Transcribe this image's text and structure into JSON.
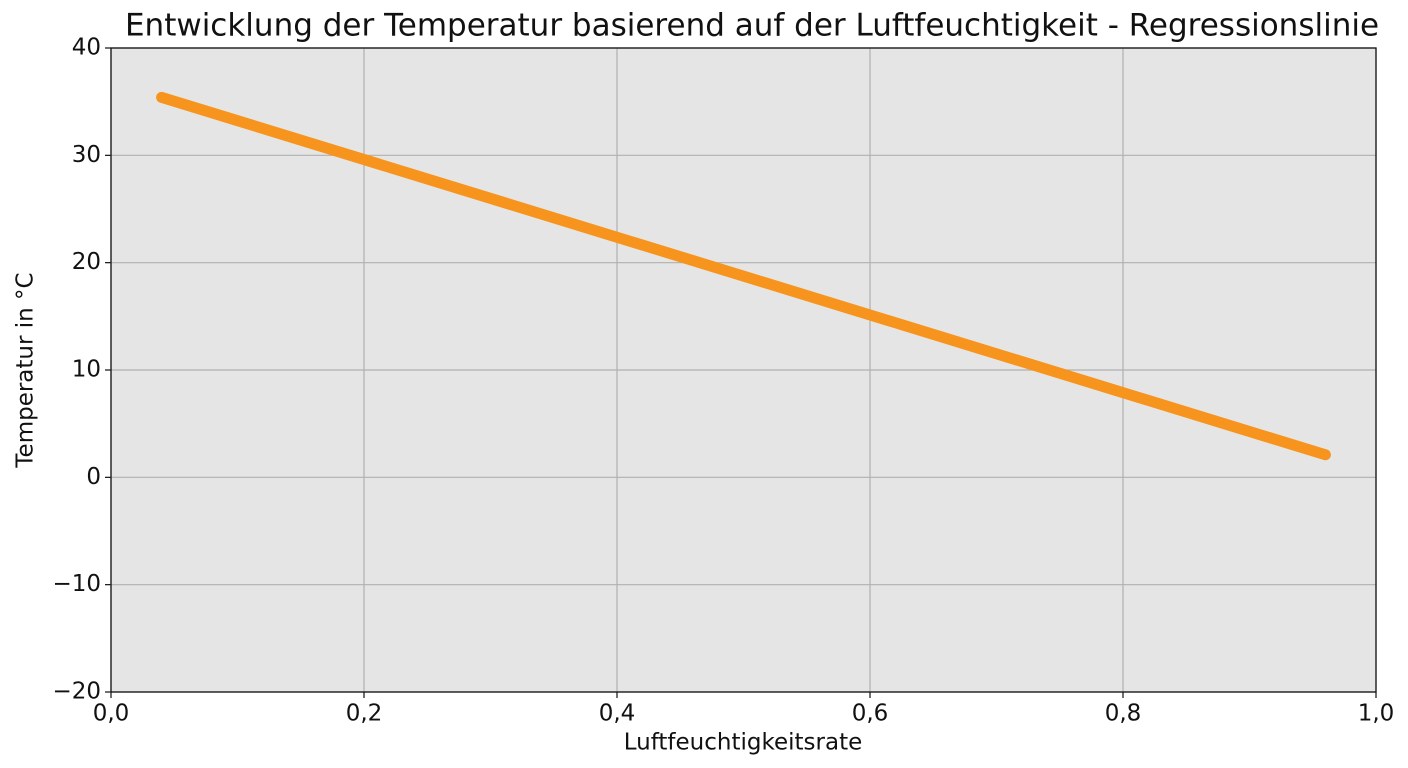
{
  "chart_data": {
    "type": "line",
    "title": "Entwicklung der Temperatur basierend auf der Luftfeuchtigkeit - Regressionslinie",
    "x_label": "Luftfeuchtigkeitsrate",
    "y_label": "Temperatur in °C",
    "x": [
      0.04,
      0.96
    ],
    "series": [
      {
        "color": "#f7941d",
        "values": [
          35.4,
          2.1
        ]
      }
    ],
    "xlim": [
      0,
      1
    ],
    "ylim": [
      -20,
      40
    ],
    "xticks": [
      {
        "value": 0,
        "label": "0,0"
      },
      {
        "value": 0.2,
        "label": "0,2"
      },
      {
        "value": 0.4,
        "label": "0,4"
      },
      {
        "value": 0.6,
        "label": "0,6"
      },
      {
        "value": 0.8,
        "label": "0,8"
      },
      {
        "value": 1,
        "label": "1,0"
      }
    ],
    "yticks": [
      {
        "value": -20,
        "label": "−20"
      },
      {
        "value": -10,
        "label": "−10"
      },
      0,
      10,
      20,
      30,
      40
    ],
    "grid": true
  }
}
